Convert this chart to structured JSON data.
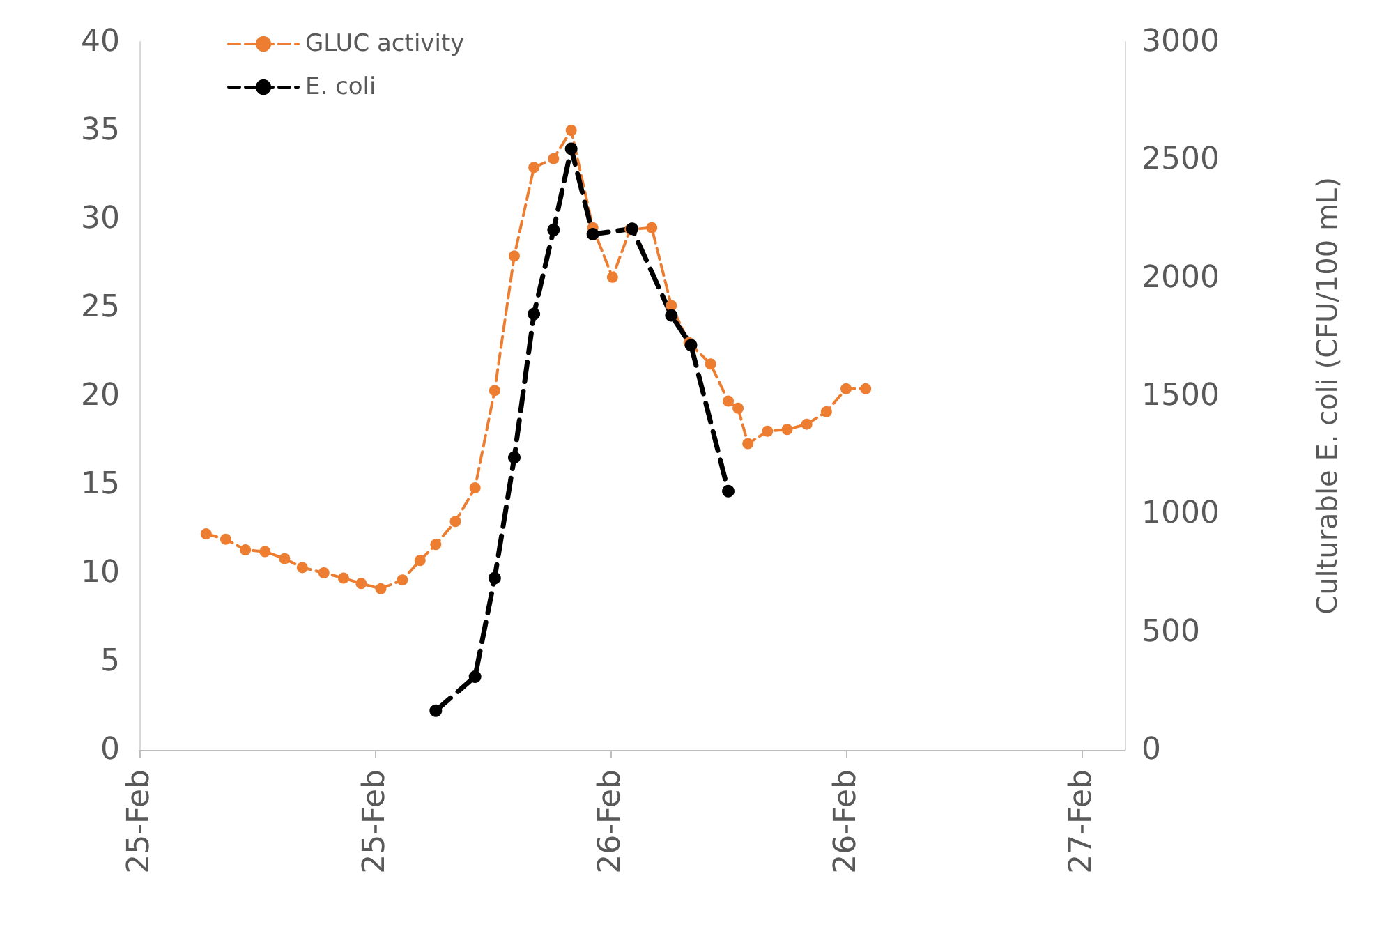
{
  "chart_data": {
    "type": "line",
    "y2label": "Culturable E. coli (CFU/100 mL)",
    "xlim": [
      "--02-25T00:00",
      "--02-27T02:12"
    ],
    "xticks": [
      {
        "value": "--02-25T00:00",
        "label": "25-Feb"
      },
      {
        "value": "--02-25T12:00",
        "label": "25-Feb"
      },
      {
        "value": "--02-26T00:00",
        "label": "26-Feb"
      },
      {
        "value": "--02-26T12:00",
        "label": "26-Feb"
      },
      {
        "value": "--02-27T00:00",
        "label": "27-Feb"
      }
    ],
    "ylim": [
      0,
      40
    ],
    "yticks": [
      0,
      5,
      10,
      15,
      20,
      25,
      30,
      35,
      40
    ],
    "y2lim": [
      0,
      3000
    ],
    "y2ticks": [
      0,
      500,
      1000,
      1500,
      2000,
      2500,
      3000
    ],
    "grid": false,
    "legend": "top",
    "marker": "circle",
    "line_style": "dashed",
    "series": [
      {
        "name": "GLUC activity",
        "color": "#ed7d31",
        "x": [
          "--02-25T03:24",
          "--02-25T04:24",
          "--02-25T05:24",
          "--02-25T06:24",
          "--02-25T07:24",
          "--02-25T08:18",
          "--02-25T09:24",
          "--02-25T10:24",
          "--02-25T11:18",
          "--02-25T12:18",
          "--02-25T13:24",
          "--02-25T14:18",
          "--02-25T15:06",
          "--02-25T16:06",
          "--02-25T17:06",
          "--02-25T18:06",
          "--02-25T19:06",
          "--02-25T20:06",
          "--02-25T21:06",
          "--02-25T22:00",
          "--02-25T23:06",
          "--02-26T00:06",
          "--02-26T01:00",
          "--02-26T02:06",
          "--02-26T03:06",
          "--02-26T04:00",
          "--02-26T05:06",
          "--02-26T06:00",
          "--02-26T06:30",
          "--02-26T07:00",
          "--02-26T08:00",
          "--02-26T09:00",
          "--02-26T10:00",
          "--02-26T11:00",
          "--02-26T12:00",
          "--02-26T13:00"
        ],
        "values": [
          12.2,
          11.9,
          11.3,
          11.2,
          10.8,
          10.3,
          10.0,
          9.7,
          9.4,
          9.1,
          9.6,
          10.7,
          11.6,
          12.9,
          14.8,
          20.3,
          27.9,
          32.9,
          33.4,
          35.0,
          29.5,
          26.7,
          29.4,
          29.5,
          25.1,
          23.0,
          21.8,
          19.7,
          19.3,
          17.3,
          18.0,
          18.1,
          18.4,
          19.1,
          20.4,
          20.4
        ]
      },
      {
        "name": "E. coli",
        "color": "#000000",
        "axis": "y2",
        "x": [
          "--02-25T15:06",
          "--02-25T17:06",
          "--02-25T18:06",
          "--02-25T19:06",
          "--02-25T20:06",
          "--02-25T21:06",
          "--02-25T22:00",
          "--02-25T23:06",
          "--02-26T01:06",
          "--02-26T03:06",
          "--02-26T04:06",
          "--02-26T06:00"
        ],
        "values": [
          166,
          310,
          728,
          1239,
          1847,
          2203,
          2547,
          2185,
          2208,
          1841,
          1715,
          1096
        ]
      }
    ]
  }
}
